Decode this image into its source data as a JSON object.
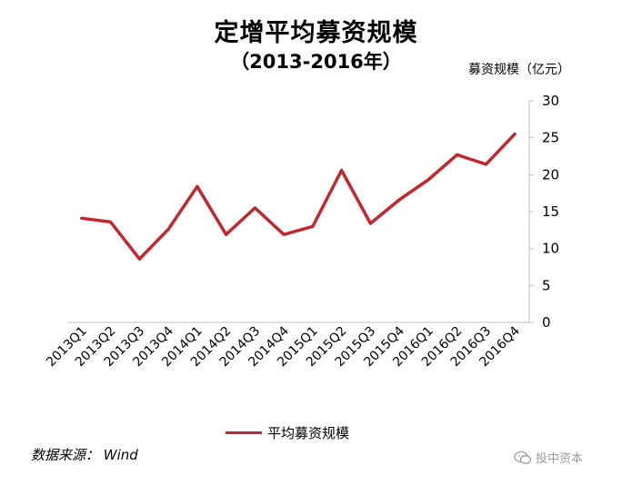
{
  "chart_data": {
    "type": "line",
    "title": "定增平均募资规模",
    "subtitle": "（2013-2016年）",
    "ylabel": "募资规模（亿元）",
    "xlabel": "",
    "categories": [
      "2013Q1",
      "2013Q2",
      "2013Q3",
      "2013Q4",
      "2014Q1",
      "2014Q2",
      "2014Q3",
      "2014Q4",
      "2015Q1",
      "2015Q2",
      "2015Q3",
      "2015Q4",
      "2016Q1",
      "2016Q2",
      "2016Q3",
      "2016Q4"
    ],
    "series": [
      {
        "name": "平均募资规模",
        "values": [
          14.1,
          13.6,
          8.6,
          12.6,
          18.4,
          11.9,
          15.5,
          11.9,
          13.0,
          20.6,
          13.4,
          16.6,
          19.3,
          22.7,
          21.4,
          25.5
        ]
      }
    ],
    "ylim": [
      0,
      30
    ],
    "yticks": [
      0,
      5,
      10,
      15,
      20,
      25,
      30
    ],
    "y_axis_position": "right",
    "grid": false,
    "legend_position": "bottom",
    "colors": {
      "line": "#c0282d",
      "axis": "#bfbfbf"
    }
  },
  "source_text": "数据来源： Wind",
  "watermark_text": "投中资本",
  "watermark_icon": "chat-bubble-icon"
}
